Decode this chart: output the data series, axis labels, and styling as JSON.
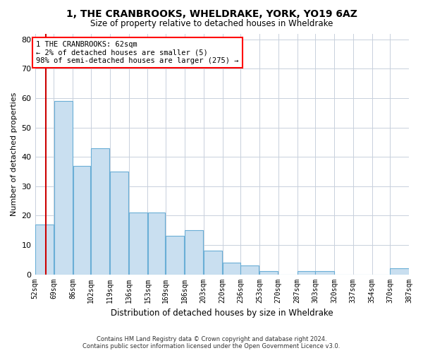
{
  "title": "1, THE CRANBROOKS, WHELDRAKE, YORK, YO19 6AZ",
  "subtitle": "Size of property relative to detached houses in Wheldrake",
  "xlabel": "Distribution of detached houses by size in Wheldrake",
  "ylabel": "Number of detached properties",
  "bar_values": [
    17,
    59,
    37,
    43,
    35,
    21,
    21,
    13,
    15,
    8,
    4,
    3,
    1,
    0,
    1,
    1,
    0,
    0,
    0,
    2
  ],
  "bar_labels": [
    "52sqm",
    "69sqm",
    "86sqm",
    "102sqm",
    "119sqm",
    "136sqm",
    "153sqm",
    "169sqm",
    "186sqm",
    "203sqm",
    "220sqm",
    "236sqm",
    "253sqm",
    "270sqm",
    "287sqm",
    "303sqm",
    "320sqm",
    "337sqm",
    "354sqm",
    "370sqm",
    "387sqm"
  ],
  "bar_color": "#c9dff0",
  "bar_edge_color": "#6aaed6",
  "background_color": "#ffffff",
  "grid_color": "#c8d0dc",
  "ylim": [
    0,
    82
  ],
  "yticks": [
    0,
    10,
    20,
    30,
    40,
    50,
    60,
    70,
    80
  ],
  "marker_color": "#cc0000",
  "annotation_text": "1 THE CRANBROOKS: 62sqm\n← 2% of detached houses are smaller (5)\n98% of semi-detached houses are larger (275) →",
  "footer_line1": "Contains HM Land Registry data © Crown copyright and database right 2024.",
  "footer_line2": "Contains public sector information licensed under the Open Government Licence v3.0.",
  "bin_edges": [
    52,
    69,
    86,
    102,
    119,
    136,
    153,
    169,
    186,
    203,
    220,
    236,
    253,
    270,
    287,
    303,
    320,
    337,
    354,
    370,
    387
  ]
}
